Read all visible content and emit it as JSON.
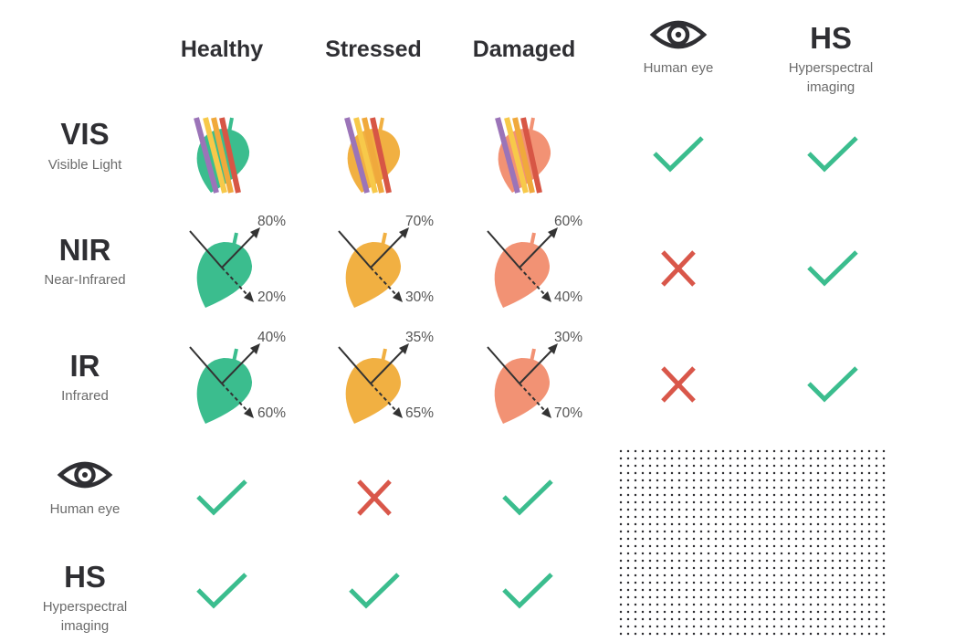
{
  "columns": {
    "healthy": "Healthy",
    "stressed": "Stressed",
    "damaged": "Damaged",
    "human_eye": {
      "label": "Human eye",
      "icon": "eye-icon"
    },
    "hs": {
      "title": "HS",
      "subtitle_line1": "Hyperspectral",
      "subtitle_line2": "imaging"
    }
  },
  "rows": {
    "vis": {
      "title": "VIS",
      "subtitle": "Visible Light"
    },
    "nir": {
      "title": "NIR",
      "subtitle": "Near-Infrared"
    },
    "ir": {
      "title": "IR",
      "subtitle": "Infrared"
    },
    "human_eye": {
      "label": "Human eye",
      "icon": "eye-icon"
    },
    "hs": {
      "title": "HS",
      "subtitle_line1": "Hyperspectral",
      "subtitle_line2": "imaging"
    }
  },
  "nir_values": {
    "healthy": {
      "reflected": "80%",
      "transmitted": "20%"
    },
    "stressed": {
      "reflected": "70%",
      "transmitted": "30%"
    },
    "damaged": {
      "reflected": "60%",
      "transmitted": "40%"
    }
  },
  "ir_values": {
    "healthy": {
      "reflected": "40%",
      "transmitted": "60%"
    },
    "stressed": {
      "reflected": "35%",
      "transmitted": "65%"
    },
    "damaged": {
      "reflected": "30%",
      "transmitted": "70%"
    }
  },
  "detection": {
    "vis": {
      "human_eye": "check",
      "hs": "check"
    },
    "nir": {
      "human_eye": "cross",
      "hs": "check"
    },
    "ir": {
      "human_eye": "cross",
      "hs": "check"
    },
    "human_eye": {
      "healthy": "check",
      "stressed": "cross",
      "damaged": "check"
    },
    "hs": {
      "healthy": "check",
      "stressed": "check",
      "damaged": "check"
    }
  },
  "colors": {
    "healthy_leaf": "#3bbd8e",
    "stressed_leaf": "#f1b042",
    "damaged_leaf": "#f29274",
    "check": "#3bbd8e",
    "cross": "#d9574a",
    "ray_purple": "#9b74b8",
    "ray_yellow": "#f7c94a",
    "ray_orange": "#f0a93c",
    "ray_red": "#d75645",
    "arrow": "#333333"
  }
}
